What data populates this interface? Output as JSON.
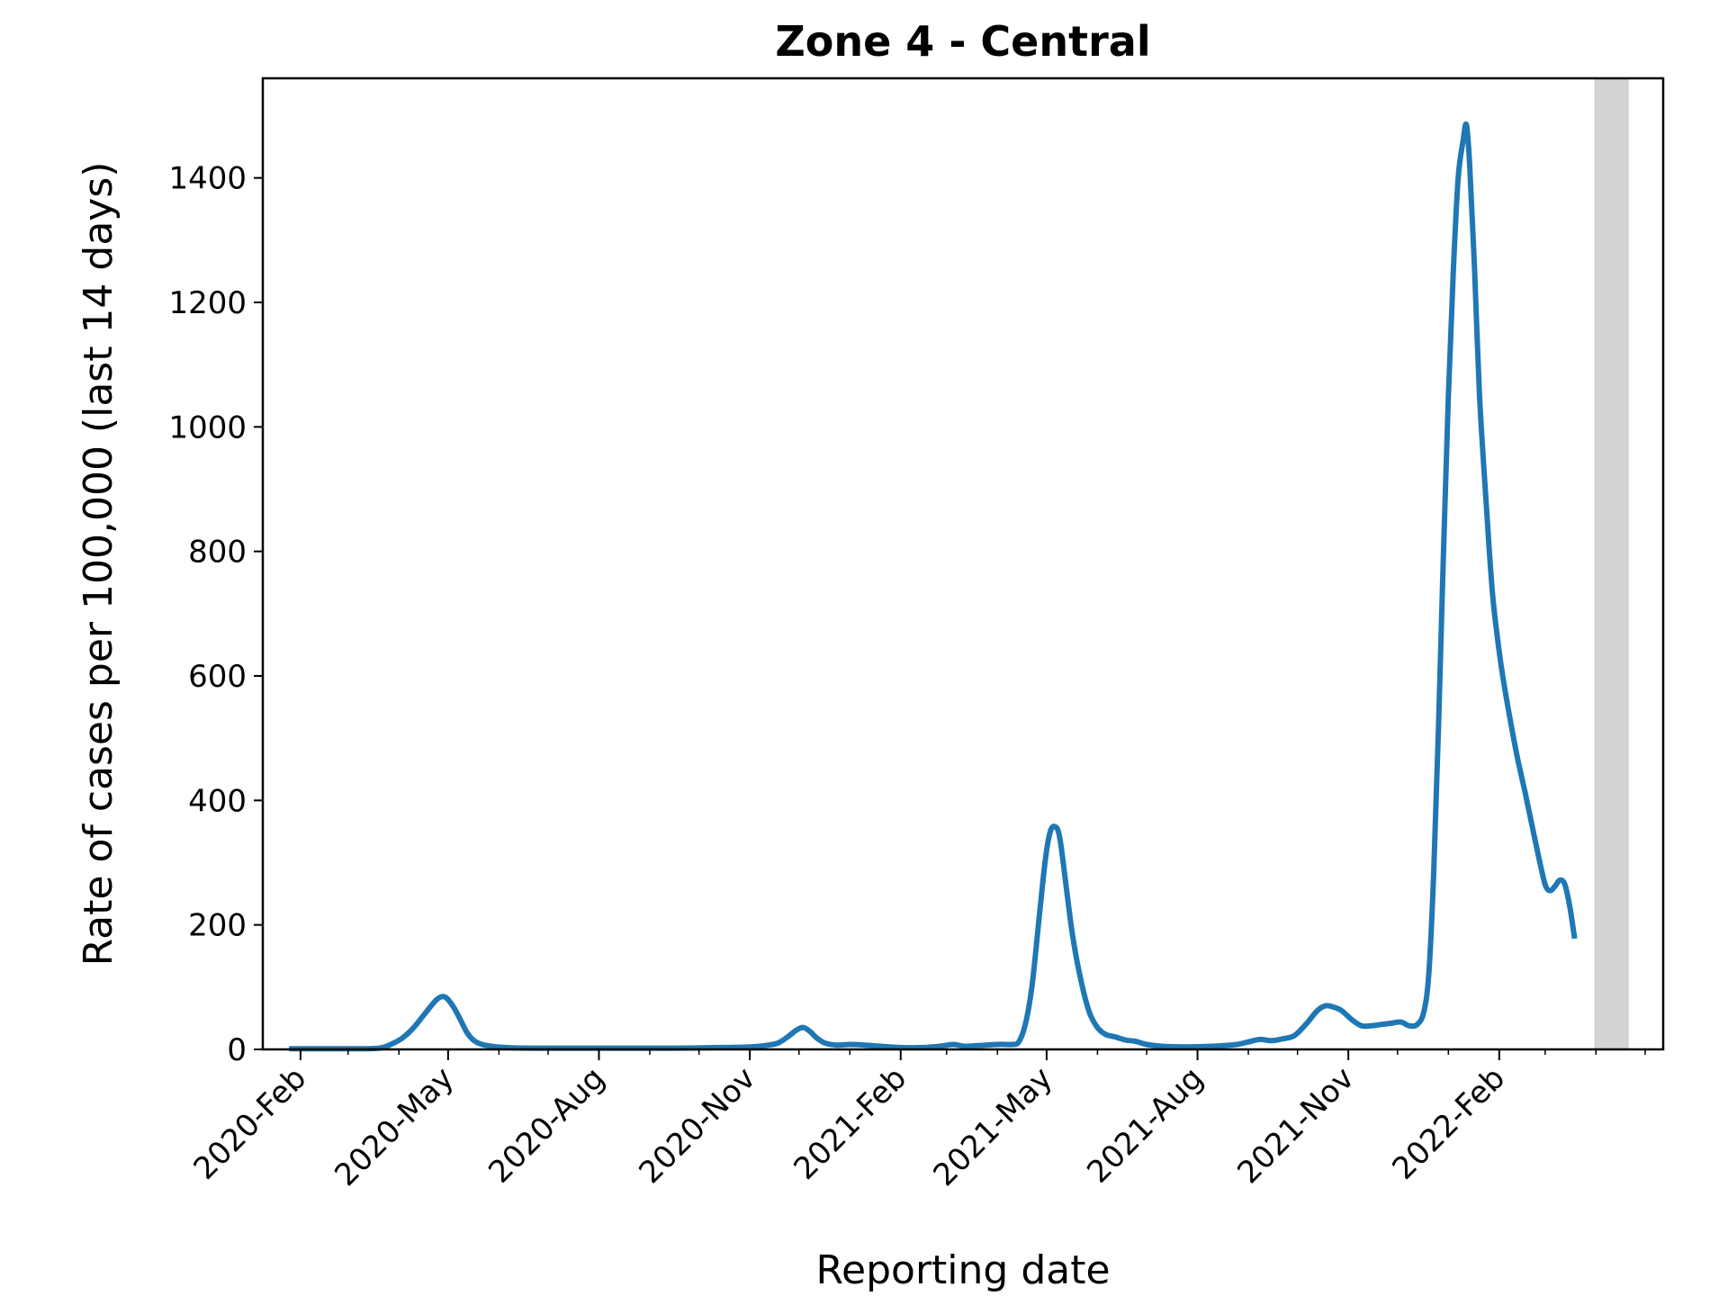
{
  "chart_data": {
    "type": "line",
    "title": "Zone 4 - Central",
    "xlabel": "Reporting date",
    "ylabel": "Rate of cases per 100,000 (last 14 days)",
    "ylim": [
      0,
      1560
    ],
    "xlim": [
      "2020-01-09",
      "2022-05-12"
    ],
    "yticks": [
      0,
      200,
      400,
      600,
      800,
      1000,
      1200,
      1400
    ],
    "xticks": [
      {
        "date": "2020-02-01",
        "label": "2020-Feb"
      },
      {
        "date": "2020-05-01",
        "label": "2020-May"
      },
      {
        "date": "2020-08-01",
        "label": "2020-Aug"
      },
      {
        "date": "2020-11-01",
        "label": "2020-Nov"
      },
      {
        "date": "2021-02-01",
        "label": "2021-Feb"
      },
      {
        "date": "2021-05-01",
        "label": "2021-May"
      },
      {
        "date": "2021-08-01",
        "label": "2021-Aug"
      },
      {
        "date": "2021-11-01",
        "label": "2021-Nov"
      },
      {
        "date": "2022-02-01",
        "label": "2022-Feb"
      }
    ],
    "minor_xticks": [
      "2020-03-01",
      "2020-04-01",
      "2020-06-01",
      "2020-07-01",
      "2020-09-01",
      "2020-10-01",
      "2020-12-01",
      "2021-01-01",
      "2021-03-01",
      "2021-04-01",
      "2021-06-01",
      "2021-07-01",
      "2021-09-01",
      "2021-10-01",
      "2021-12-01",
      "2022-01-01",
      "2022-03-01",
      "2022-04-01",
      "2022-05-01"
    ],
    "shaded_region": {
      "start": "2022-03-31",
      "end": "2022-04-21",
      "color": "#d3d3d3"
    },
    "grid": false,
    "series": [
      {
        "name": "",
        "color": "#1f77b4",
        "points": [
          [
            "2020-01-25",
            1
          ],
          [
            "2020-02-15",
            1
          ],
          [
            "2020-03-05",
            1
          ],
          [
            "2020-03-20",
            2
          ],
          [
            "2020-03-27",
            8
          ],
          [
            "2020-04-03",
            18
          ],
          [
            "2020-04-10",
            35
          ],
          [
            "2020-04-17",
            58
          ],
          [
            "2020-04-24",
            80
          ],
          [
            "2020-04-28",
            85
          ],
          [
            "2020-05-01",
            80
          ],
          [
            "2020-05-05",
            65
          ],
          [
            "2020-05-09",
            45
          ],
          [
            "2020-05-13",
            25
          ],
          [
            "2020-05-18",
            12
          ],
          [
            "2020-05-25",
            6
          ],
          [
            "2020-06-05",
            3
          ],
          [
            "2020-06-20",
            2
          ],
          [
            "2020-07-15",
            2
          ],
          [
            "2020-08-15",
            2
          ],
          [
            "2020-09-15",
            2
          ],
          [
            "2020-10-15",
            3
          ],
          [
            "2020-11-01",
            4
          ],
          [
            "2020-11-10",
            6
          ],
          [
            "2020-11-18",
            10
          ],
          [
            "2020-11-24",
            20
          ],
          [
            "2020-11-30",
            32
          ],
          [
            "2020-12-04",
            35
          ],
          [
            "2020-12-08",
            28
          ],
          [
            "2020-12-12",
            18
          ],
          [
            "2020-12-17",
            10
          ],
          [
            "2020-12-24",
            7
          ],
          [
            "2021-01-01",
            8
          ],
          [
            "2021-01-10",
            7
          ],
          [
            "2021-01-20",
            5
          ],
          [
            "2021-02-01",
            3
          ],
          [
            "2021-02-15",
            3
          ],
          [
            "2021-02-25",
            5
          ],
          [
            "2021-03-05",
            8
          ],
          [
            "2021-03-12",
            5
          ],
          [
            "2021-03-20",
            6
          ],
          [
            "2021-04-01",
            8
          ],
          [
            "2021-04-10",
            8
          ],
          [
            "2021-04-14",
            12
          ],
          [
            "2021-04-18",
            40
          ],
          [
            "2021-04-22",
            100
          ],
          [
            "2021-04-26",
            200
          ],
          [
            "2021-04-30",
            300
          ],
          [
            "2021-05-03",
            348
          ],
          [
            "2021-05-06",
            358
          ],
          [
            "2021-05-09",
            340
          ],
          [
            "2021-05-13",
            260
          ],
          [
            "2021-05-17",
            180
          ],
          [
            "2021-05-22",
            110
          ],
          [
            "2021-05-27",
            60
          ],
          [
            "2021-06-01",
            35
          ],
          [
            "2021-06-06",
            24
          ],
          [
            "2021-06-12",
            20
          ],
          [
            "2021-06-18",
            15
          ],
          [
            "2021-06-24",
            13
          ],
          [
            "2021-07-01",
            8
          ],
          [
            "2021-07-10",
            5
          ],
          [
            "2021-07-25",
            4
          ],
          [
            "2021-08-10",
            5
          ],
          [
            "2021-08-25",
            8
          ],
          [
            "2021-09-01",
            12
          ],
          [
            "2021-09-08",
            16
          ],
          [
            "2021-09-15",
            14
          ],
          [
            "2021-09-22",
            17
          ],
          [
            "2021-09-29",
            22
          ],
          [
            "2021-10-06",
            40
          ],
          [
            "2021-10-13",
            62
          ],
          [
            "2021-10-18",
            70
          ],
          [
            "2021-10-23",
            68
          ],
          [
            "2021-10-28",
            62
          ],
          [
            "2021-11-03",
            48
          ],
          [
            "2021-11-09",
            38
          ],
          [
            "2021-11-15",
            38
          ],
          [
            "2021-11-21",
            40
          ],
          [
            "2021-11-27",
            42
          ],
          [
            "2021-12-03",
            44
          ],
          [
            "2021-12-08",
            38
          ],
          [
            "2021-12-13",
            40
          ],
          [
            "2021-12-17",
            60
          ],
          [
            "2021-12-20",
            120
          ],
          [
            "2021-12-23",
            280
          ],
          [
            "2021-12-26",
            520
          ],
          [
            "2021-12-29",
            800
          ],
          [
            "2022-01-01",
            1050
          ],
          [
            "2022-01-04",
            1250
          ],
          [
            "2022-01-07",
            1400
          ],
          [
            "2022-01-10",
            1460
          ],
          [
            "2022-01-12",
            1485
          ],
          [
            "2022-01-14",
            1420
          ],
          [
            "2022-01-17",
            1250
          ],
          [
            "2022-01-20",
            1050
          ],
          [
            "2022-01-24",
            880
          ],
          [
            "2022-01-28",
            730
          ],
          [
            "2022-02-02",
            620
          ],
          [
            "2022-02-07",
            540
          ],
          [
            "2022-02-12",
            470
          ],
          [
            "2022-02-17",
            410
          ],
          [
            "2022-02-21",
            360
          ],
          [
            "2022-02-25",
            310
          ],
          [
            "2022-03-01",
            265
          ],
          [
            "2022-03-04",
            255
          ],
          [
            "2022-03-07",
            262
          ],
          [
            "2022-03-10",
            272
          ],
          [
            "2022-03-13",
            265
          ],
          [
            "2022-03-16",
            230
          ],
          [
            "2022-03-19",
            178
          ]
        ]
      }
    ]
  }
}
